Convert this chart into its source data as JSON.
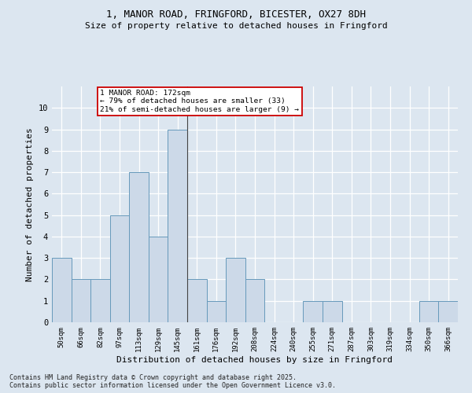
{
  "title_line1": "1, MANOR ROAD, FRINGFORD, BICESTER, OX27 8DH",
  "title_line2": "Size of property relative to detached houses in Fringford",
  "xlabel": "Distribution of detached houses by size in Fringford",
  "ylabel": "Number of detached properties",
  "footer_line1": "Contains HM Land Registry data © Crown copyright and database right 2025.",
  "footer_line2": "Contains public sector information licensed under the Open Government Licence v3.0.",
  "categories": [
    "50sqm",
    "66sqm",
    "82sqm",
    "97sqm",
    "113sqm",
    "129sqm",
    "145sqm",
    "161sqm",
    "176sqm",
    "192sqm",
    "208sqm",
    "224sqm",
    "240sqm",
    "255sqm",
    "271sqm",
    "287sqm",
    "303sqm",
    "319sqm",
    "334sqm",
    "350sqm",
    "366sqm"
  ],
  "values": [
    3,
    2,
    2,
    5,
    7,
    4,
    9,
    2,
    1,
    3,
    2,
    0,
    0,
    1,
    1,
    0,
    0,
    0,
    0,
    1,
    1
  ],
  "bar_color": "#ccd9e8",
  "bar_edge_color": "#6699bb",
  "annotation_text": "1 MANOR ROAD: 172sqm\n← 79% of detached houses are smaller (33)\n21% of semi-detached houses are larger (9) →",
  "annotation_box_color": "#ffffff",
  "annotation_border_color": "#cc0000",
  "ylim": [
    0,
    11
  ],
  "yticks": [
    0,
    1,
    2,
    3,
    4,
    5,
    6,
    7,
    8,
    9,
    10,
    11
  ],
  "background_color": "#dce6f0",
  "plot_bg_color": "#dce6f0",
  "grid_color": "#ffffff",
  "vline_index": 6,
  "figsize": [
    6.0,
    5.0
  ],
  "dpi": 100
}
